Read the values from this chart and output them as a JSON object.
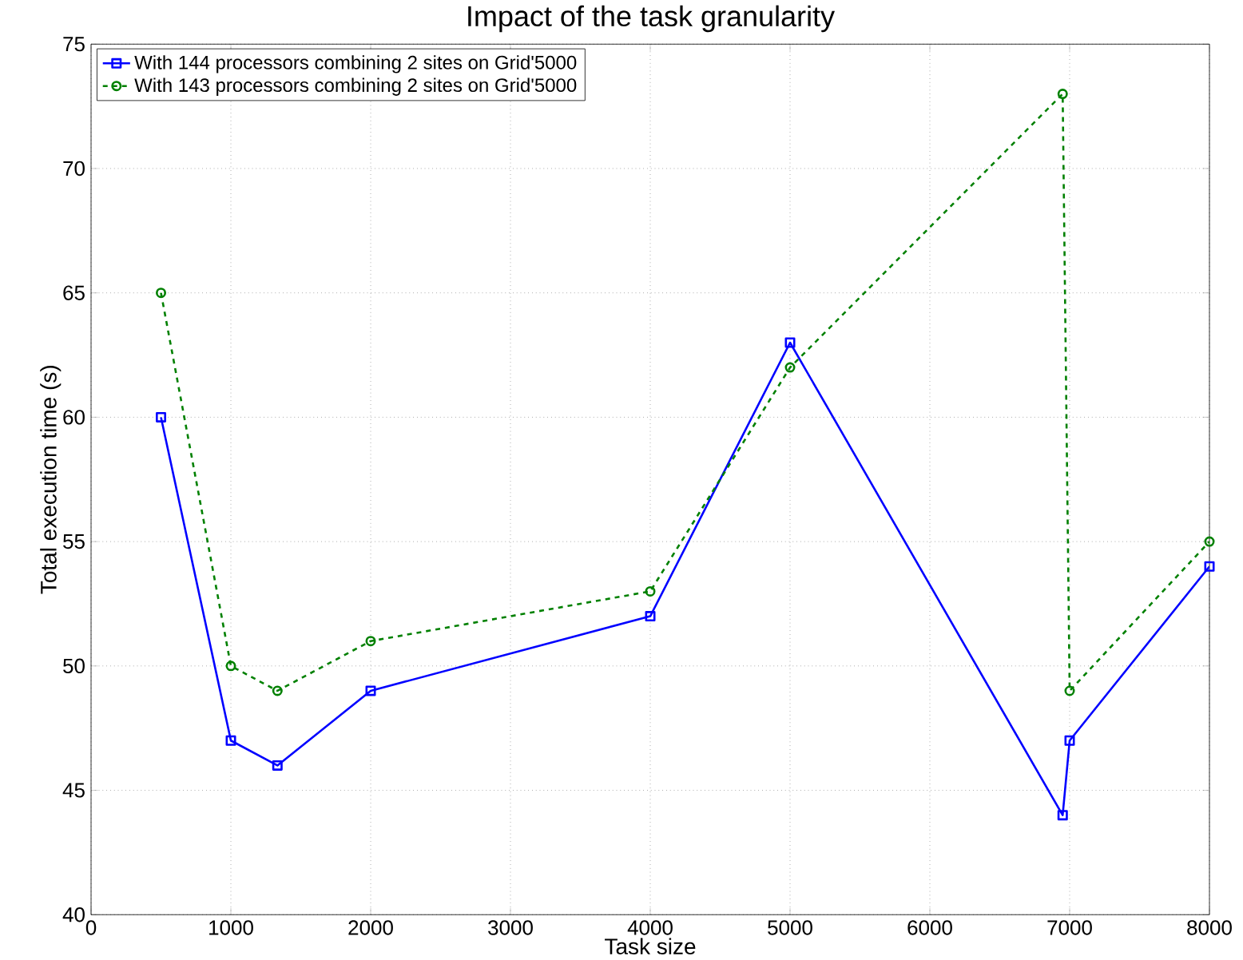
{
  "chart_data": {
    "type": "line",
    "title": "Impact of the task granularity",
    "xlabel": "Task size",
    "ylabel": "Total execution time (s)",
    "xlim": [
      0,
      8000
    ],
    "xticks": [
      0,
      1000,
      2000,
      3000,
      4000,
      5000,
      6000,
      7000,
      8000
    ],
    "ylim": [
      40,
      75
    ],
    "yticks": [
      40,
      45,
      50,
      55,
      60,
      65,
      70,
      75
    ],
    "grid": true,
    "legend": "top left",
    "series": [
      {
        "name": "With 144 processors combining 2 sites on Grid'5000",
        "color": "#0000ff",
        "marker": "square",
        "line_style": "solid",
        "x": [
          500,
          1000,
          1333,
          2000,
          4000,
          5000,
          6950,
          7000,
          8000
        ],
        "values": [
          60,
          47,
          46,
          49,
          52,
          63,
          44,
          47,
          54
        ]
      },
      {
        "name": "With 143 processors combining 2 sites on Grid'5000",
        "color": "#008000",
        "marker": "circle",
        "line_style": "dashed",
        "x": [
          500,
          1000,
          1333,
          2000,
          4000,
          5000,
          6950,
          7000,
          8000
        ],
        "values": [
          65,
          50,
          49,
          51,
          53,
          62,
          73,
          49,
          55
        ]
      }
    ]
  }
}
